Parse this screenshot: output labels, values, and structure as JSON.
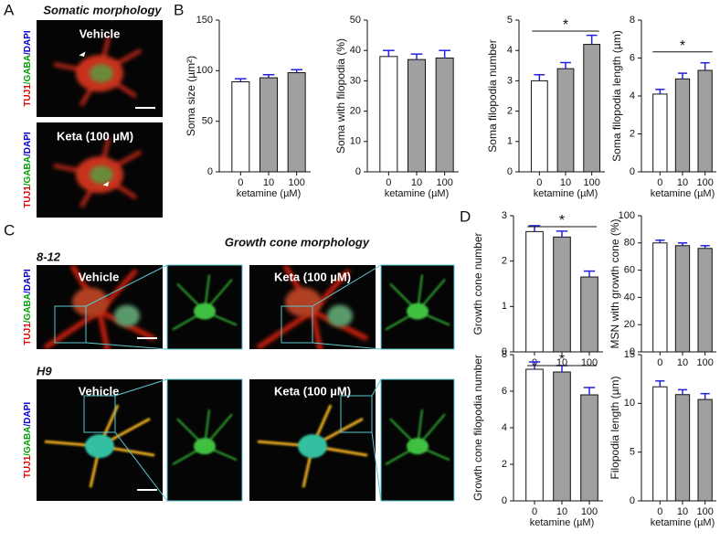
{
  "panel_labels": [
    "A",
    "B",
    "C",
    "D"
  ],
  "stain_label": [
    "TUJ1",
    "/GABA",
    "/DAPI"
  ],
  "panel_A": {
    "title": "Somatic morphology",
    "image_labels": [
      "Vehicle",
      "Keta (100 µM)"
    ]
  },
  "panel_C": {
    "title": "Growth cone morphology",
    "rows": [
      {
        "line": "8-12",
        "labels": [
          "Vehicle",
          "Keta (100 µM)"
        ]
      },
      {
        "line": "H9",
        "labels": [
          "Vehicle",
          "Keta (100 µM)"
        ]
      }
    ]
  },
  "chart_data": [
    {
      "type": "bar",
      "y_label": "Soma size (µm²)",
      "x_label": "ketamine (µM)",
      "categories": [
        "0",
        "10",
        "100"
      ],
      "values": [
        89,
        93,
        98
      ],
      "errors": [
        3,
        3,
        3
      ],
      "colors": [
        "#ffffff",
        "#a0a0a0",
        "#a0a0a0"
      ],
      "error_color": "#2222dd",
      "ylim": [
        0,
        150
      ],
      "yticks": [
        0,
        50,
        100,
        150
      ]
    },
    {
      "type": "bar",
      "y_label": "Soma with filopodia (%)",
      "x_label": "ketamine (µM)",
      "categories": [
        "0",
        "10",
        "100"
      ],
      "values": [
        38,
        37,
        37.5
      ],
      "errors": [
        2,
        1.8,
        2.5
      ],
      "colors": [
        "#ffffff",
        "#a0a0a0",
        "#a0a0a0"
      ],
      "error_color": "#2222dd",
      "ylim": [
        0,
        50
      ],
      "yticks": [
        0,
        10,
        20,
        30,
        40,
        50
      ]
    },
    {
      "type": "bar",
      "y_label": "Soma filopodia number",
      "x_label": "ketamine (µM)",
      "categories": [
        "0",
        "10",
        "100"
      ],
      "values": [
        3.0,
        3.4,
        4.2
      ],
      "errors": [
        0.2,
        0.2,
        0.3
      ],
      "colors": [
        "#ffffff",
        "#a0a0a0",
        "#a0a0a0"
      ],
      "error_color": "#2222dd",
      "ylim": [
        0,
        5
      ],
      "yticks": [
        0,
        1,
        2,
        3,
        4,
        5
      ],
      "significance": "*"
    },
    {
      "type": "bar",
      "y_label": "Soma filopodia length (µm)",
      "x_label": "ketamine (µM)",
      "categories": [
        "0",
        "10",
        "100"
      ],
      "values": [
        4.1,
        4.9,
        5.35
      ],
      "errors": [
        0.25,
        0.3,
        0.4
      ],
      "colors": [
        "#ffffff",
        "#a0a0a0",
        "#a0a0a0"
      ],
      "error_color": "#2222dd",
      "ylim": [
        0,
        8
      ],
      "yticks": [
        0,
        2,
        4,
        6,
        8
      ],
      "significance": "*"
    },
    {
      "type": "bar",
      "y_label": "Growth cone number",
      "categories": [
        "0",
        "10",
        "100"
      ],
      "values": [
        2.65,
        2.53,
        1.65
      ],
      "errors": [
        0.13,
        0.13,
        0.13
      ],
      "colors": [
        "#ffffff",
        "#a0a0a0",
        "#a0a0a0"
      ],
      "error_color": "#2222dd",
      "ylim": [
        0,
        3
      ],
      "yticks": [
        0,
        1,
        2,
        3
      ],
      "significance": "*"
    },
    {
      "type": "bar",
      "y_label": "MSN with growth cone (%)",
      "categories": [
        "0",
        "10",
        "100"
      ],
      "values": [
        80,
        78,
        76
      ],
      "errors": [
        2,
        2,
        2
      ],
      "colors": [
        "#ffffff",
        "#a0a0a0",
        "#a0a0a0"
      ],
      "error_color": "#2222dd",
      "ylim": [
        0,
        100
      ],
      "yticks": [
        0,
        20,
        40,
        60,
        80,
        100
      ]
    },
    {
      "type": "bar",
      "y_label": "Growth cone filopodia number",
      "x_label": "ketamine (µM)",
      "categories": [
        "0",
        "10",
        "100"
      ],
      "values": [
        7.2,
        7.05,
        5.8
      ],
      "errors": [
        0.4,
        0.35,
        0.4
      ],
      "colors": [
        "#ffffff",
        "#a0a0a0",
        "#a0a0a0"
      ],
      "error_color": "#2222dd",
      "ylim": [
        0,
        8
      ],
      "yticks": [
        0,
        2,
        4,
        6,
        8
      ],
      "significance": "*"
    },
    {
      "type": "bar",
      "y_label": "Filopodia length (µm)",
      "x_label": "ketamine (µM)",
      "categories": [
        "0",
        "10",
        "100"
      ],
      "values": [
        11.7,
        10.9,
        10.4
      ],
      "errors": [
        0.6,
        0.5,
        0.6
      ],
      "colors": [
        "#ffffff",
        "#a0a0a0",
        "#a0a0a0"
      ],
      "error_color": "#2222dd",
      "ylim": [
        0,
        15
      ],
      "yticks": [
        0,
        5,
        10,
        15
      ]
    }
  ]
}
